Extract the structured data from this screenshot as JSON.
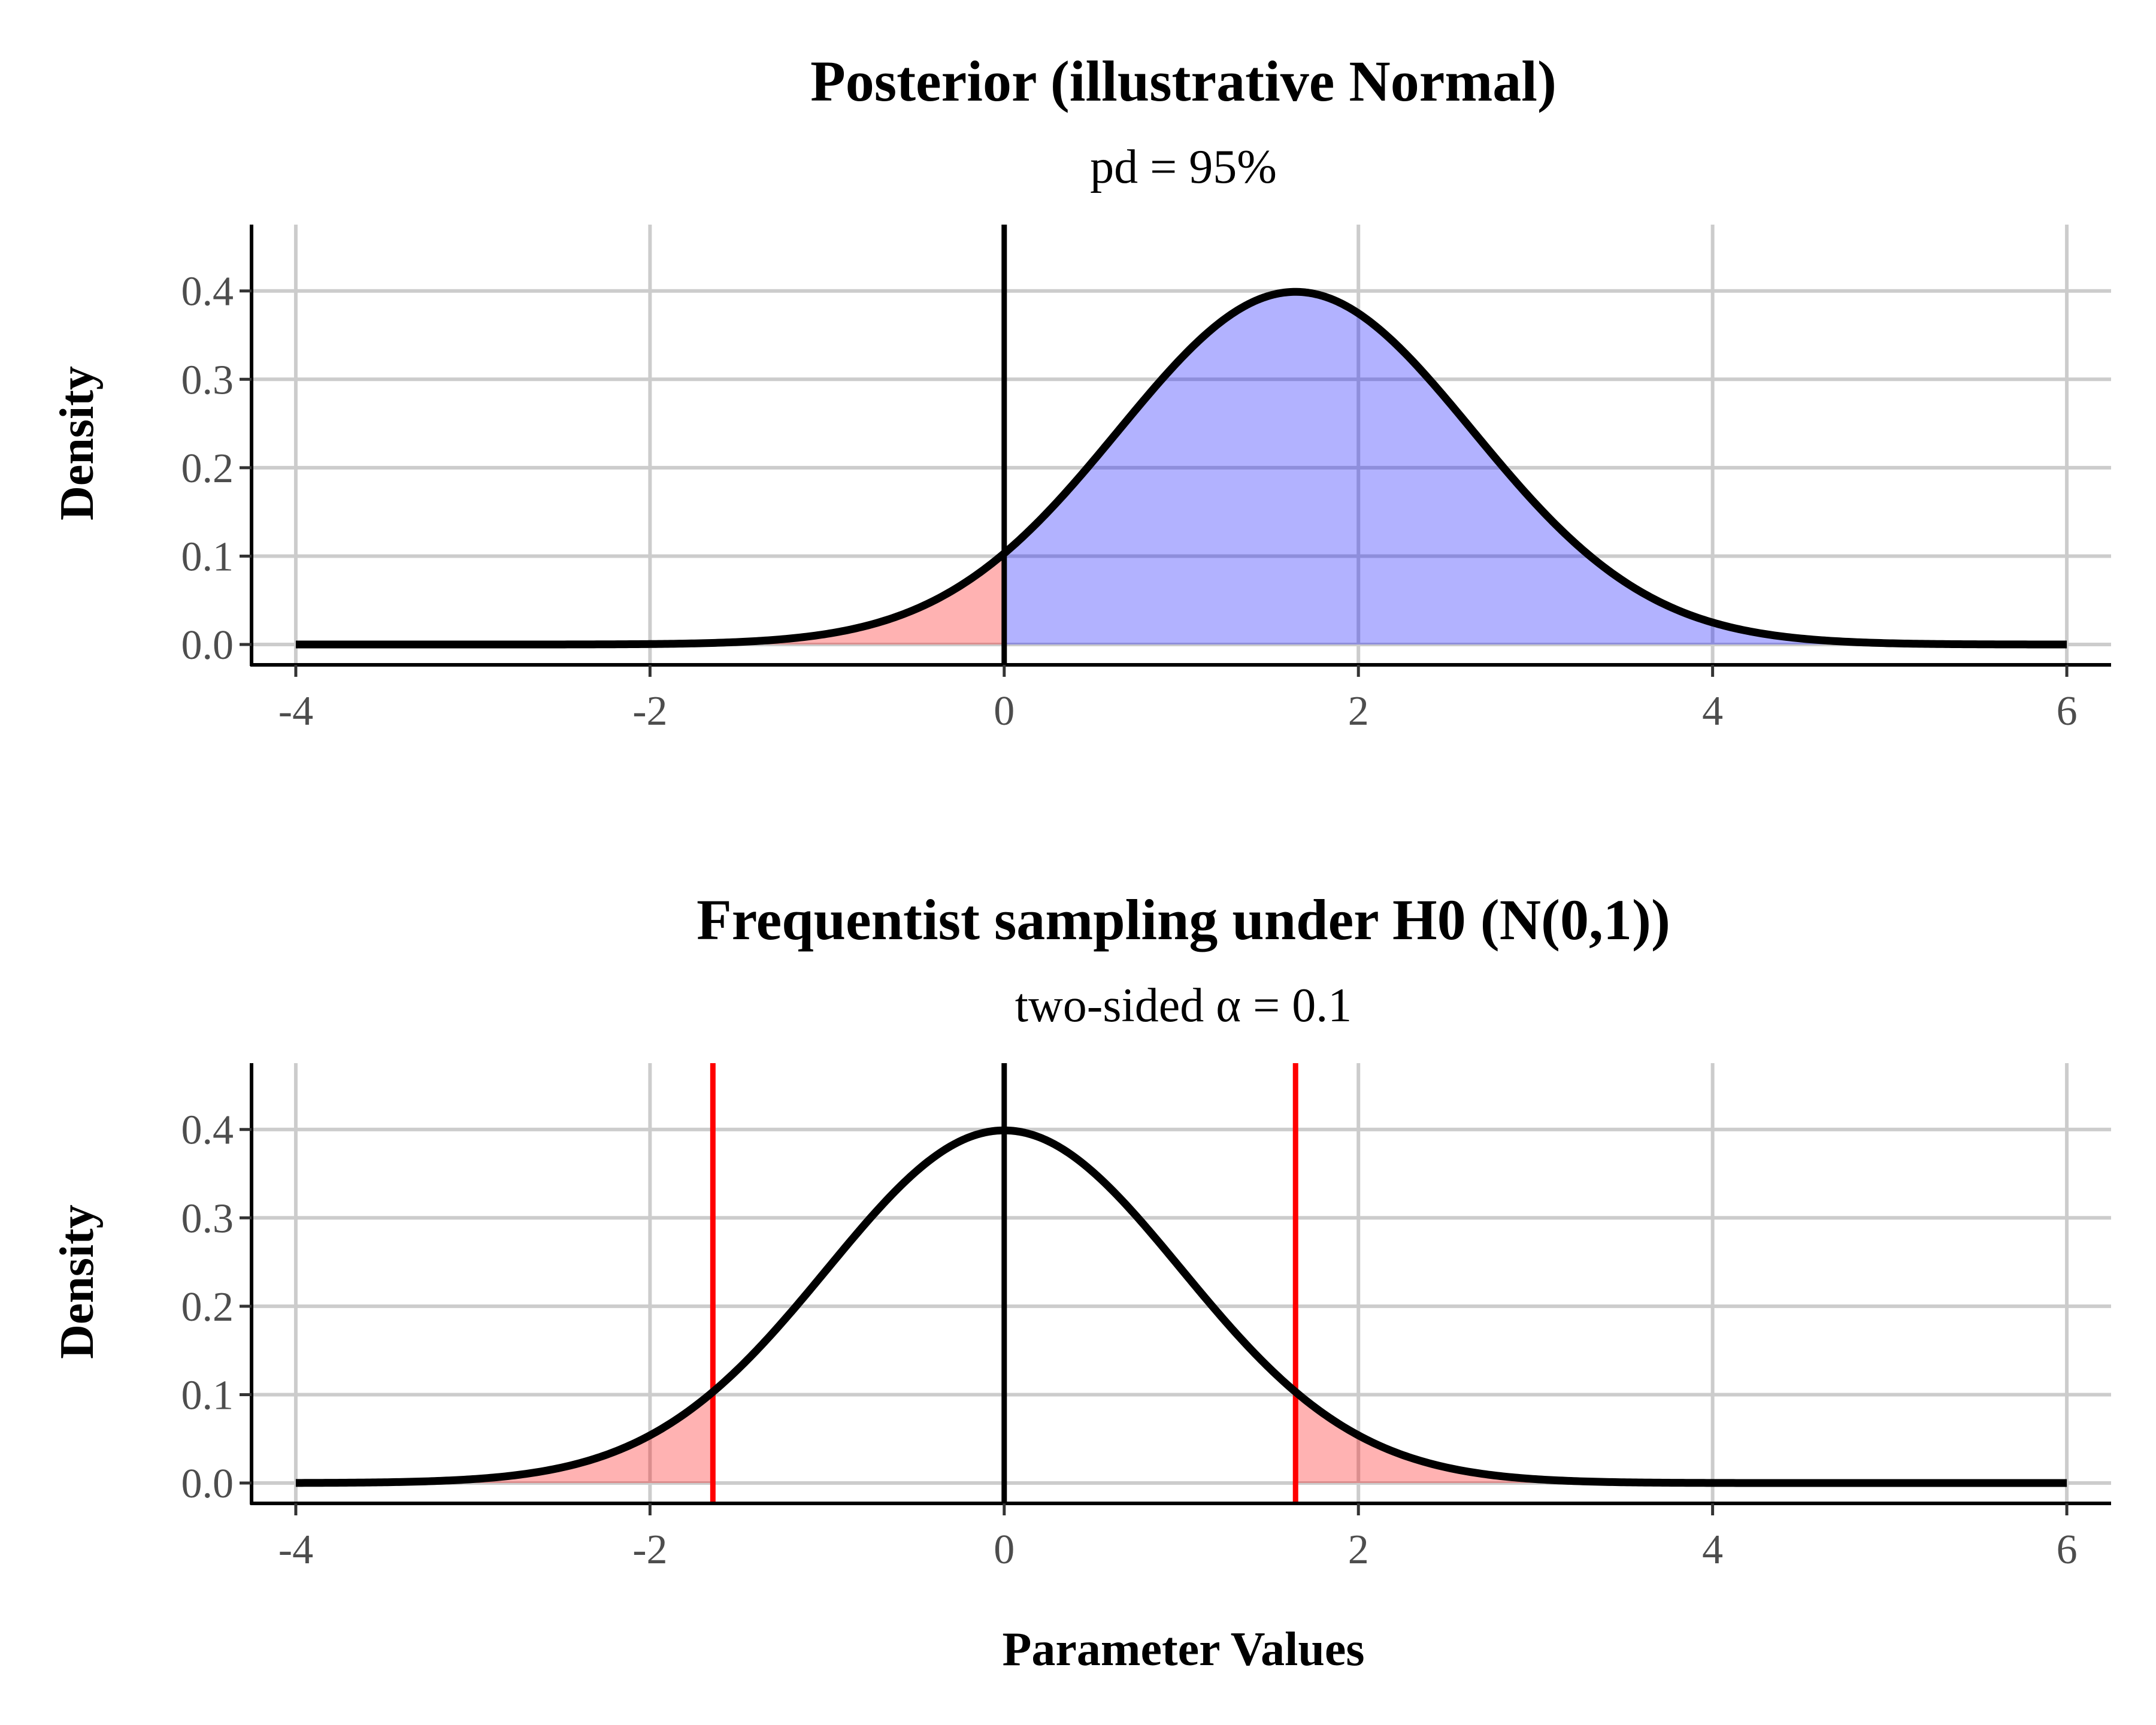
{
  "chart_data": [
    {
      "type": "area",
      "title": "Posterior (illustrative Normal)",
      "subtitle": "pd = 95%",
      "xlabel": "",
      "ylabel": "Density",
      "xlim": [
        -4.25,
        6.25
      ],
      "ylim": [
        -0.023,
        0.475
      ],
      "x_ticks": [
        -4,
        -2,
        0,
        2,
        4,
        6
      ],
      "y_ticks": [
        0.0,
        0.1,
        0.2,
        0.3,
        0.4
      ],
      "x_tick_labels": [
        "-4",
        "-2",
        "0",
        "2",
        "4",
        "6"
      ],
      "y_tick_labels": [
        "0.0",
        "0.1",
        "0.2",
        "0.3",
        "0.4"
      ],
      "grid": true,
      "distribution": {
        "family": "normal",
        "mean": 1.645,
        "sd": 1,
        "x_range": [
          -4,
          6
        ]
      },
      "reference_line": {
        "x": 0,
        "color": "#000000"
      },
      "regions": [
        {
          "from": -4,
          "to": 0,
          "fill": "#ff0000",
          "opacity": 0.3
        },
        {
          "from": 0,
          "to": 6,
          "fill": "#0000ff",
          "opacity": 0.3
        }
      ],
      "critical_lines": []
    },
    {
      "type": "area",
      "title": "Frequentist sampling under H0 (N(0,1))",
      "subtitle": "two-sided α = 0.1",
      "xlabel": "Parameter Values",
      "ylabel": "Density",
      "xlim": [
        -4.25,
        6.25
      ],
      "ylim": [
        -0.023,
        0.475
      ],
      "x_ticks": [
        -4,
        -2,
        0,
        2,
        4,
        6
      ],
      "y_ticks": [
        0.0,
        0.1,
        0.2,
        0.3,
        0.4
      ],
      "x_tick_labels": [
        "-4",
        "-2",
        "0",
        "2",
        "4",
        "6"
      ],
      "y_tick_labels": [
        "0.0",
        "0.1",
        "0.2",
        "0.3",
        "0.4"
      ],
      "grid": true,
      "distribution": {
        "family": "normal",
        "mean": 0,
        "sd": 1,
        "x_range": [
          -4,
          6
        ]
      },
      "reference_line": {
        "x": 0,
        "color": "#000000"
      },
      "regions": [
        {
          "from": -4,
          "to": -1.645,
          "fill": "#ff0000",
          "opacity": 0.3
        },
        {
          "from": 1.645,
          "to": 6,
          "fill": "#ff0000",
          "opacity": 0.3
        }
      ],
      "critical_lines": [
        {
          "x": -1.645,
          "color": "#ff0000"
        },
        {
          "x": 1.645,
          "color": "#ff0000"
        }
      ]
    }
  ]
}
